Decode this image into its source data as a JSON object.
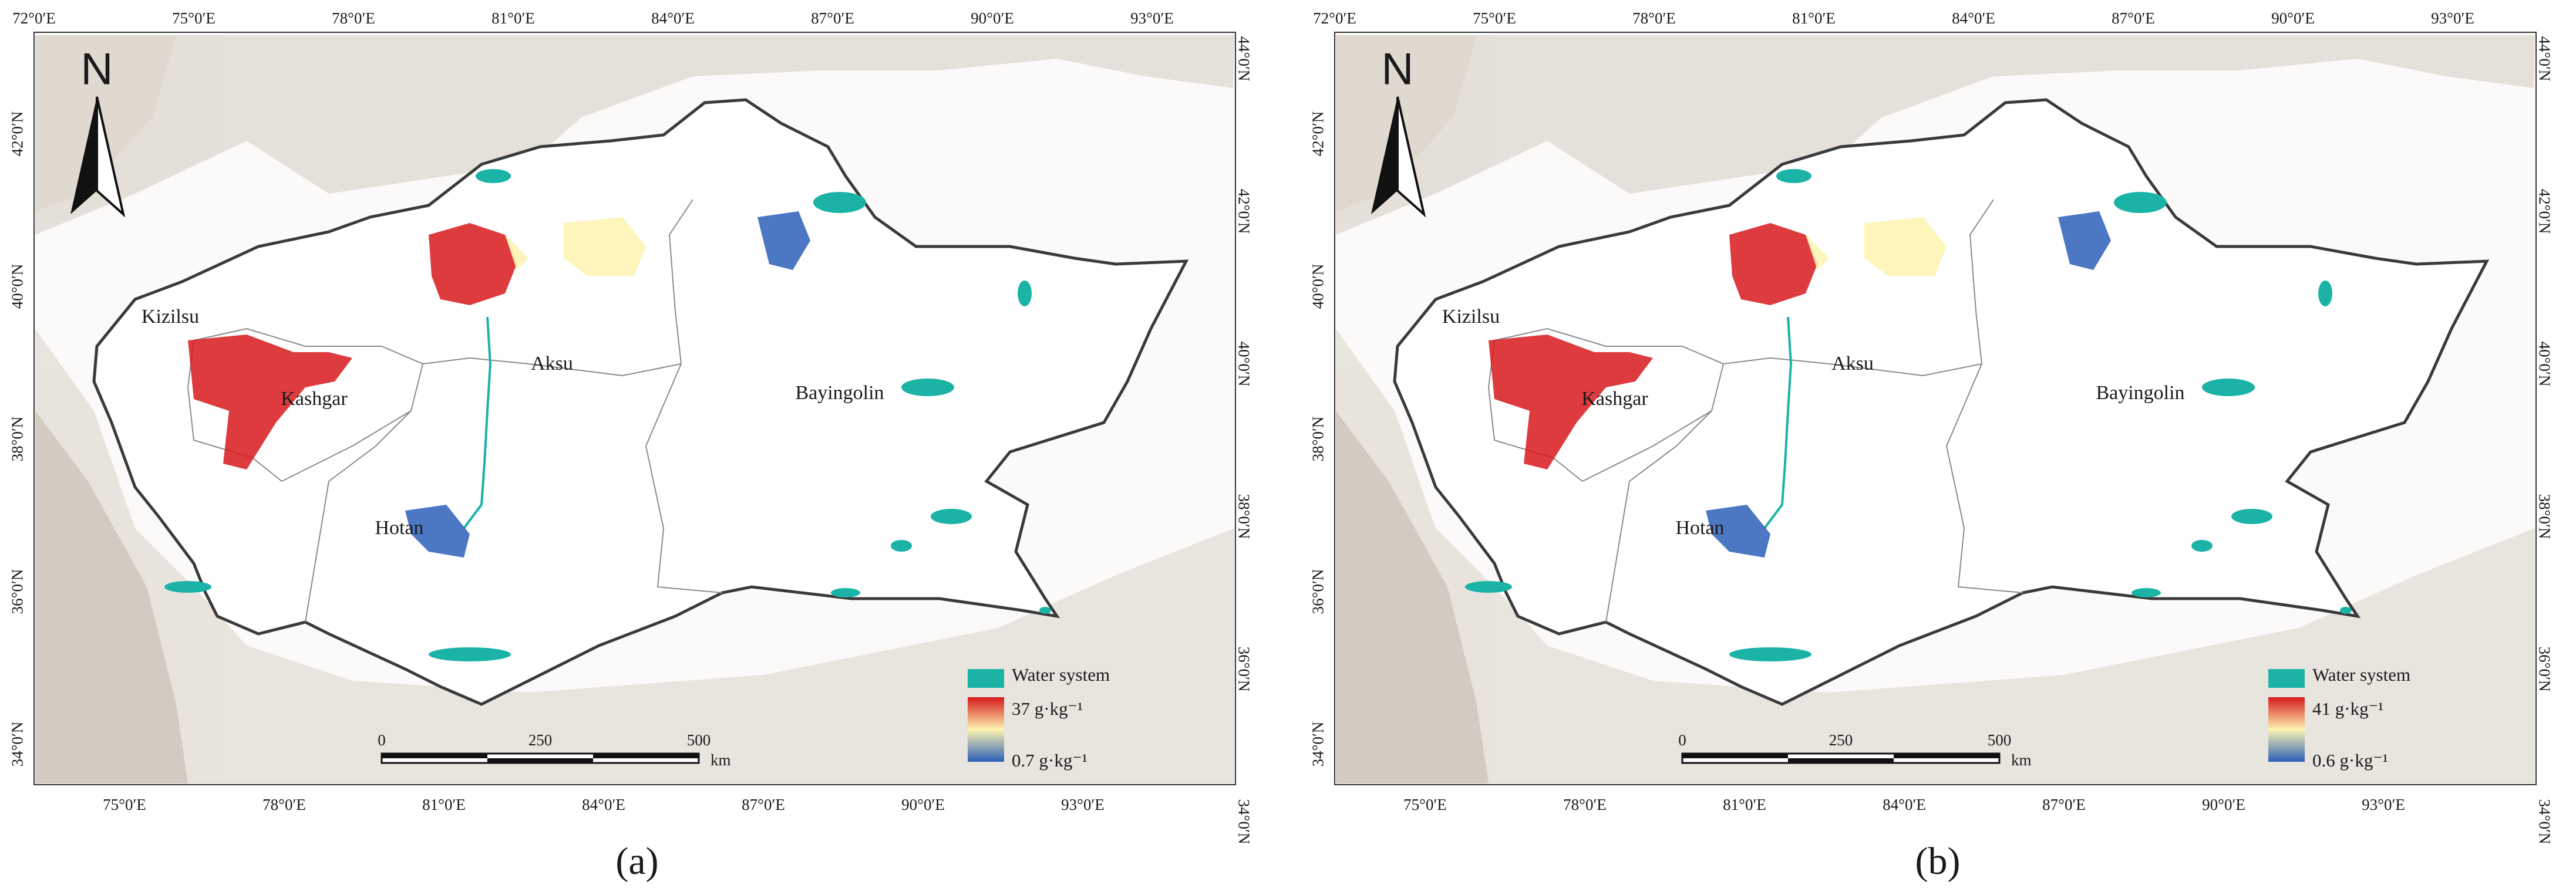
{
  "figure": {
    "panels": [
      {
        "label": "(a)",
        "legend": {
          "water_label": "Water system",
          "max_label": "37 g·kg⁻¹",
          "min_label": "0.7 g·kg⁻¹",
          "water_color": "#1ab3a6"
        }
      },
      {
        "label": "(b)",
        "legend": {
          "water_label": "Water system",
          "max_label": "41 g·kg⁻¹",
          "min_label": "0.6 g·kg⁻¹",
          "water_color": "#1ab3a6"
        }
      }
    ],
    "top_ticks": [
      "72°0′E",
      "75°0′E",
      "78°0′E",
      "81°0′E",
      "84°0′E",
      "87°0′E",
      "90°0′E",
      "93°0′E"
    ],
    "bottom_ticks": [
      "75°0′E",
      "78°0′E",
      "81°0′E",
      "84°0′E",
      "87°0′E",
      "90°0′E",
      "93°0′E"
    ],
    "left_ticks": [
      "42°0′N",
      "40°0′N",
      "38°0′N",
      "36°0′N",
      "34°0′N"
    ],
    "right_ticks": [
      "44°0′N",
      "42°0′N",
      "40°0′N",
      "38°0′N",
      "36°0′N",
      "34°0′N"
    ],
    "regions": [
      "Kizilsu",
      "Kashgar",
      "Aksu",
      "Hotan",
      "Bayingolin"
    ],
    "north_arrow_letter": "N",
    "scale_bar": {
      "ticks": [
        "0",
        "250",
        "500"
      ],
      "unit": "km"
    },
    "colormap": {
      "high": "#d7191c",
      "mid": "#fdf3b0",
      "low": "#2c5fb8"
    }
  }
}
